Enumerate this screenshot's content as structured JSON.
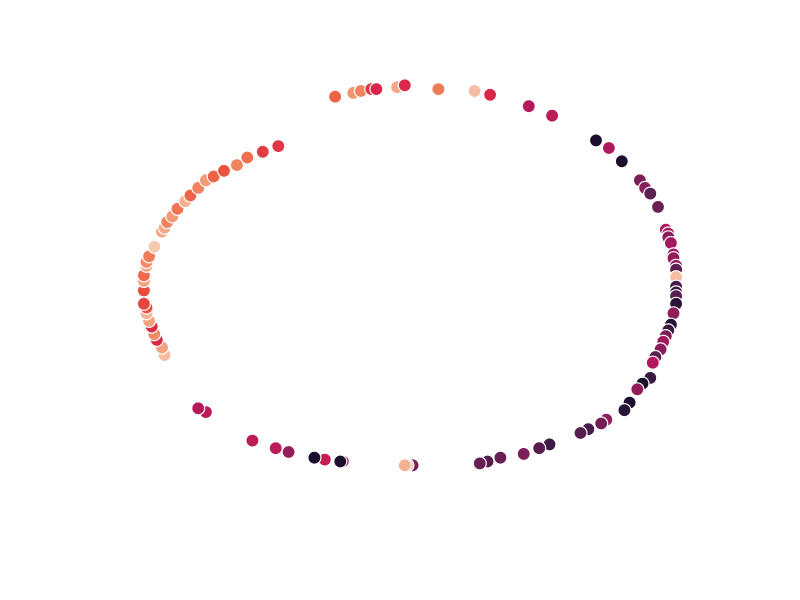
{
  "chart_data": {
    "type": "scatter",
    "title": "",
    "xlabel": "",
    "ylabel": "",
    "axes_visible": false,
    "grid": false,
    "legend": "none",
    "colormap": "rocket",
    "xlim": [
      -1.2,
      1.2
    ],
    "ylim": [
      -1.2,
      1.2
    ],
    "palette": [
      "#1c0f2e",
      "#3b1a43",
      "#5c1f52",
      "#8a1e5a",
      "#b2185d",
      "#d8244a",
      "#ea4e3c",
      "#f07a55",
      "#f4a683",
      "#f6d2bb"
    ],
    "points": [
      {
        "x": 0.11,
        "y": 1.11,
        "c": 0.78
      },
      {
        "x": 0.25,
        "y": 1.1,
        "c": 0.95
      },
      {
        "x": 0.31,
        "y": 1.08,
        "c": 0.56
      },
      {
        "x": 0.46,
        "y": 1.02,
        "c": 0.45
      },
      {
        "x": 0.55,
        "y": 0.97,
        "c": 0.47
      },
      {
        "x": 0.72,
        "y": 0.84,
        "c": 0.0
      },
      {
        "x": 0.77,
        "y": 0.8,
        "c": 0.44
      },
      {
        "x": 0.82,
        "y": 0.73,
        "c": 0.0
      },
      {
        "x": 0.89,
        "y": 0.63,
        "c": 0.3
      },
      {
        "x": 0.91,
        "y": 0.59,
        "c": 0.33
      },
      {
        "x": 0.93,
        "y": 0.56,
        "c": 0.22
      },
      {
        "x": 0.96,
        "y": 0.49,
        "c": 0.26
      },
      {
        "x": 0.99,
        "y": 0.37,
        "c": 0.44
      },
      {
        "x": 1.0,
        "y": 0.35,
        "c": 0.42
      },
      {
        "x": 1.0,
        "y": 0.33,
        "c": 0.33
      },
      {
        "x": 1.01,
        "y": 0.3,
        "c": 0.4
      },
      {
        "x": 1.02,
        "y": 0.24,
        "c": 0.38
      },
      {
        "x": 1.02,
        "y": 0.22,
        "c": 0.36
      },
      {
        "x": 1.03,
        "y": 0.18,
        "c": 0.33
      },
      {
        "x": 1.03,
        "y": 0.16,
        "c": 0.22
      },
      {
        "x": 1.03,
        "y": 0.12,
        "c": 0.95
      },
      {
        "x": 1.03,
        "y": 0.07,
        "c": 0.15
      },
      {
        "x": 1.03,
        "y": 0.04,
        "c": 0.1
      },
      {
        "x": 1.03,
        "y": 0.02,
        "c": 0.2
      },
      {
        "x": 1.03,
        "y": -0.02,
        "c": 0.05
      },
      {
        "x": 1.02,
        "y": -0.07,
        "c": 0.35
      },
      {
        "x": 1.01,
        "y": -0.13,
        "c": 0.02
      },
      {
        "x": 1.0,
        "y": -0.16,
        "c": 0.1
      },
      {
        "x": 0.99,
        "y": -0.19,
        "c": 0.3
      },
      {
        "x": 0.98,
        "y": -0.22,
        "c": 0.4
      },
      {
        "x": 0.97,
        "y": -0.26,
        "c": 0.33
      },
      {
        "x": 0.95,
        "y": -0.3,
        "c": 0.22
      },
      {
        "x": 0.94,
        "y": -0.33,
        "c": 0.45
      },
      {
        "x": 0.93,
        "y": -0.41,
        "c": 0.1
      },
      {
        "x": 0.9,
        "y": -0.44,
        "c": 0.0
      },
      {
        "x": 0.88,
        "y": -0.47,
        "c": 0.35
      },
      {
        "x": 0.85,
        "y": -0.54,
        "c": 0.0
      },
      {
        "x": 0.83,
        "y": -0.58,
        "c": 0.05
      },
      {
        "x": 0.76,
        "y": -0.63,
        "c": 0.35
      },
      {
        "x": 0.74,
        "y": -0.65,
        "c": 0.28
      },
      {
        "x": 0.69,
        "y": -0.68,
        "c": 0.15
      },
      {
        "x": 0.66,
        "y": -0.7,
        "c": 0.2
      },
      {
        "x": 0.54,
        "y": -0.76,
        "c": 0.12
      },
      {
        "x": 0.5,
        "y": -0.78,
        "c": 0.2
      },
      {
        "x": 0.44,
        "y": -0.81,
        "c": 0.3
      },
      {
        "x": 0.35,
        "y": -0.83,
        "c": 0.25
      },
      {
        "x": 0.3,
        "y": -0.85,
        "c": 0.2
      },
      {
        "x": 0.27,
        "y": -0.86,
        "c": 0.25
      },
      {
        "x": 0.01,
        "y": -0.87,
        "c": 0.3
      },
      {
        "x": -0.01,
        "y": -0.87,
        "c": 0.95
      },
      {
        "x": -0.02,
        "y": -0.87,
        "c": 0.92
      },
      {
        "x": -0.26,
        "y": -0.85,
        "c": 0.38
      },
      {
        "x": -0.27,
        "y": -0.85,
        "c": 0.0
      },
      {
        "x": -0.33,
        "y": -0.84,
        "c": 0.5
      },
      {
        "x": -0.37,
        "y": -0.83,
        "c": 0.0
      },
      {
        "x": -0.47,
        "y": -0.8,
        "c": 0.36
      },
      {
        "x": -0.52,
        "y": -0.78,
        "c": 0.47
      },
      {
        "x": -0.61,
        "y": -0.74,
        "c": 0.48
      },
      {
        "x": -0.79,
        "y": -0.59,
        "c": 0.47
      },
      {
        "x": -0.82,
        "y": -0.57,
        "c": 0.46
      },
      {
        "x": -0.95,
        "y": -0.29,
        "c": 0.95
      },
      {
        "x": -0.96,
        "y": -0.25,
        "c": 0.88
      },
      {
        "x": -0.98,
        "y": -0.21,
        "c": 0.56
      },
      {
        "x": -0.99,
        "y": -0.18,
        "c": 0.82
      },
      {
        "x": -1.0,
        "y": -0.14,
        "c": 0.58
      },
      {
        "x": -1.01,
        "y": -0.11,
        "c": 0.88
      },
      {
        "x": -1.02,
        "y": -0.07,
        "c": 0.92
      },
      {
        "x": -1.02,
        "y": -0.04,
        "c": 0.68
      },
      {
        "x": -1.03,
        "y": -0.02,
        "c": 0.64
      },
      {
        "x": -1.03,
        "y": 0.05,
        "c": 0.66
      },
      {
        "x": -1.03,
        "y": 0.1,
        "c": 0.88
      },
      {
        "x": -1.03,
        "y": 0.13,
        "c": 0.74
      },
      {
        "x": -1.02,
        "y": 0.18,
        "c": 0.88
      },
      {
        "x": -1.02,
        "y": 0.2,
        "c": 0.82
      },
      {
        "x": -1.01,
        "y": 0.23,
        "c": 0.78
      },
      {
        "x": -0.99,
        "y": 0.28,
        "c": 0.98
      },
      {
        "x": -0.96,
        "y": 0.36,
        "c": 0.88
      },
      {
        "x": -0.95,
        "y": 0.38,
        "c": 0.9
      },
      {
        "x": -0.94,
        "y": 0.41,
        "c": 0.8
      },
      {
        "x": -0.92,
        "y": 0.44,
        "c": 0.86
      },
      {
        "x": -0.9,
        "y": 0.48,
        "c": 0.76
      },
      {
        "x": -0.87,
        "y": 0.52,
        "c": 0.92
      },
      {
        "x": -0.85,
        "y": 0.55,
        "c": 0.72
      },
      {
        "x": -0.82,
        "y": 0.59,
        "c": 0.8
      },
      {
        "x": -0.79,
        "y": 0.63,
        "c": 0.86
      },
      {
        "x": -0.76,
        "y": 0.65,
        "c": 0.72
      },
      {
        "x": -0.72,
        "y": 0.68,
        "c": 0.68
      },
      {
        "x": -0.67,
        "y": 0.71,
        "c": 0.8
      },
      {
        "x": -0.63,
        "y": 0.75,
        "c": 0.75
      },
      {
        "x": -0.57,
        "y": 0.78,
        "c": 0.62
      },
      {
        "x": -0.51,
        "y": 0.81,
        "c": 0.6
      },
      {
        "x": -0.29,
        "y": 1.07,
        "c": 0.72
      },
      {
        "x": -0.22,
        "y": 1.09,
        "c": 0.85
      },
      {
        "x": -0.19,
        "y": 1.1,
        "c": 0.8
      },
      {
        "x": -0.15,
        "y": 1.11,
        "c": 0.6
      },
      {
        "x": -0.13,
        "y": 1.11,
        "c": 0.56
      },
      {
        "x": -0.05,
        "y": 1.12,
        "c": 0.9
      },
      {
        "x": -0.02,
        "y": 1.13,
        "c": 0.57
      }
    ]
  }
}
